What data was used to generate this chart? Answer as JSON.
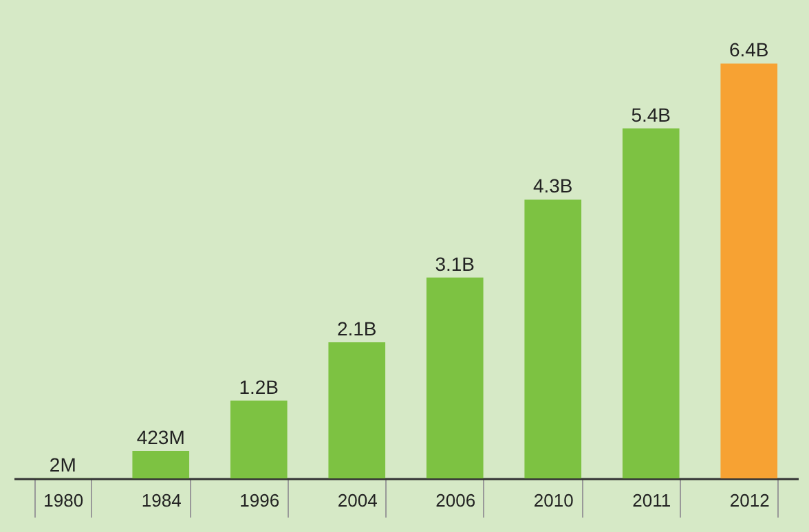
{
  "chart_data": {
    "type": "bar",
    "categories": [
      "1980",
      "1984",
      "1996",
      "2004",
      "2006",
      "2010",
      "2011",
      "2012"
    ],
    "values": [
      2000000,
      423000000,
      1200000000,
      2100000000,
      3100000000,
      4300000000,
      5400000000,
      6400000000
    ],
    "value_labels": [
      "2M",
      "423M",
      "1.2B",
      "2.1B",
      "3.1B",
      "4.3B",
      "5.4B",
      "6.4B"
    ],
    "colors": [
      "#7dc242",
      "#7dc242",
      "#7dc242",
      "#7dc242",
      "#7dc242",
      "#7dc242",
      "#7dc242",
      "#f7a233"
    ],
    "grid": false,
    "legend": false
  }
}
